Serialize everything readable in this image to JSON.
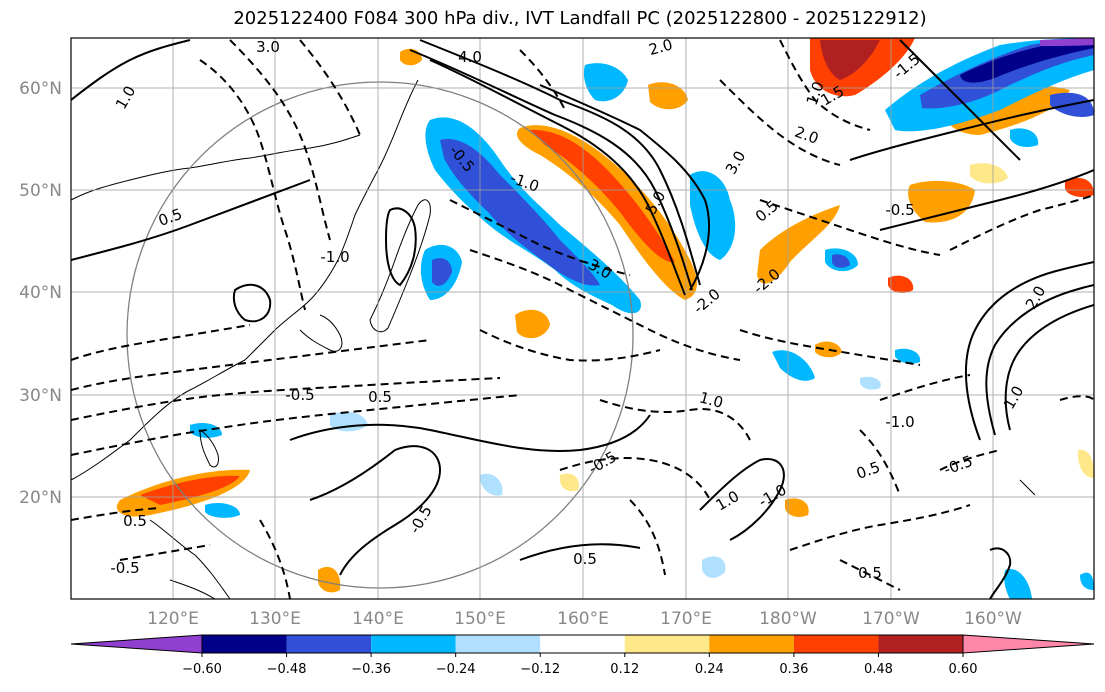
{
  "title": "2025122400 F084 300 hPa div., IVT Landfall PC (2025122800 - 2025122912)",
  "map": {
    "lat_labels": [
      "60°N",
      "50°N",
      "40°N",
      "30°N",
      "20°N"
    ],
    "lon_labels": [
      "120°E",
      "130°E",
      "140°E",
      "150°E",
      "160°E",
      "170°E",
      "180°W",
      "170°W",
      "160°W"
    ],
    "contour_labels": [
      "3.0",
      "2.0",
      "1.0",
      "0.5",
      "-0.5",
      "-1.0",
      "-2.0",
      "-3.0",
      "4.0",
      "5.0",
      "1.5",
      "-1.5",
      "3.0",
      "2.0",
      "1.0",
      "-0.5",
      "0.5",
      "-1.0",
      "-0.5",
      "0.5",
      "1.0",
      "-0.5",
      "-1.0",
      "0.5",
      "-0.5",
      "0.5",
      "1.0",
      "-1.0",
      "2.0",
      "-2.0",
      "0.5",
      "1.0",
      "-0.5",
      "0.5",
      "-0.5"
    ],
    "colors": {
      "pos_light": "#ffe88a",
      "pos_orange": "#ffa000",
      "pos_red": "#ff4000",
      "pos_dark": "#b02020",
      "neg_light": "#b0e0ff",
      "neg_cyan": "#00b8ff",
      "neg_blue": "#3050d8",
      "neg_navy": "#000088",
      "purple": "#9040d0",
      "pink": "#ff88aa"
    }
  },
  "colorbar": {
    "labels": [
      "−0.60",
      "−0.48",
      "−0.36",
      "−0.24",
      "−0.12",
      "0.12",
      "0.24",
      "0.36",
      "0.48",
      "0.60"
    ],
    "colors": [
      "#9040d0",
      "#000088",
      "#3050d8",
      "#00b8ff",
      "#b0e0ff",
      "#ffffff",
      "#ffe88a",
      "#ffa000",
      "#ff4000",
      "#b02020",
      "#ff88aa"
    ]
  }
}
